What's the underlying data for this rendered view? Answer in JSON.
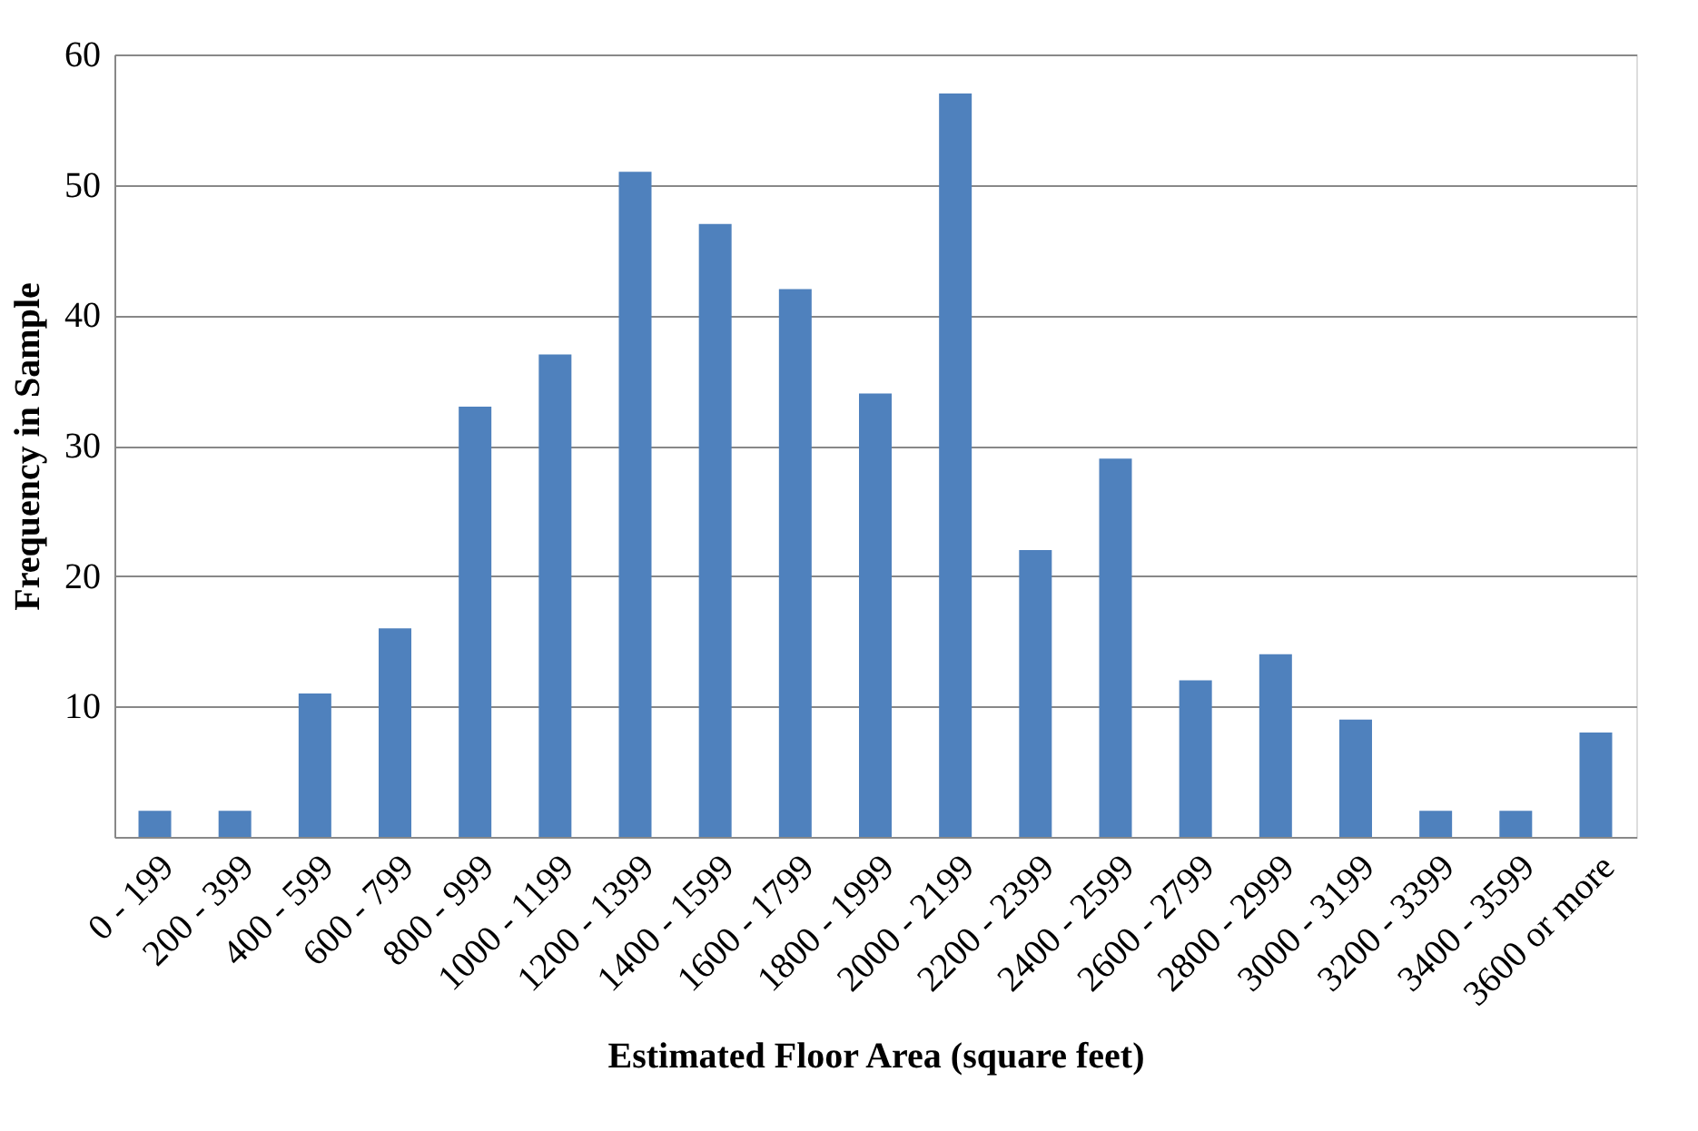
{
  "chart_data": {
    "type": "bar",
    "xlabel": "Estimated Floor Area (square feet)",
    "ylabel": "Frequency in Sample",
    "categories": [
      "0 - 199",
      "200 - 399",
      "400 - 599",
      "600 - 799",
      "800 - 999",
      "1000 - 1199",
      "1200 - 1399",
      "1400 - 1599",
      "1600 - 1799",
      "1800 - 1999",
      "2000 - 2199",
      "2200 - 2399",
      "2400 - 2599",
      "2600 - 2799",
      "2800 - 2999",
      "3000 - 3199",
      "3200 - 3399",
      "3400 - 3599",
      "3600 or more"
    ],
    "values": [
      2,
      2,
      11,
      16,
      33,
      37,
      51,
      47,
      42,
      34,
      57,
      22,
      29,
      12,
      14,
      9,
      2,
      2,
      8
    ],
    "color": "#4f81bd",
    "ylim": [
      0,
      60
    ],
    "yticks": [
      10,
      20,
      30,
      40,
      50,
      60
    ],
    "grid": "y"
  }
}
